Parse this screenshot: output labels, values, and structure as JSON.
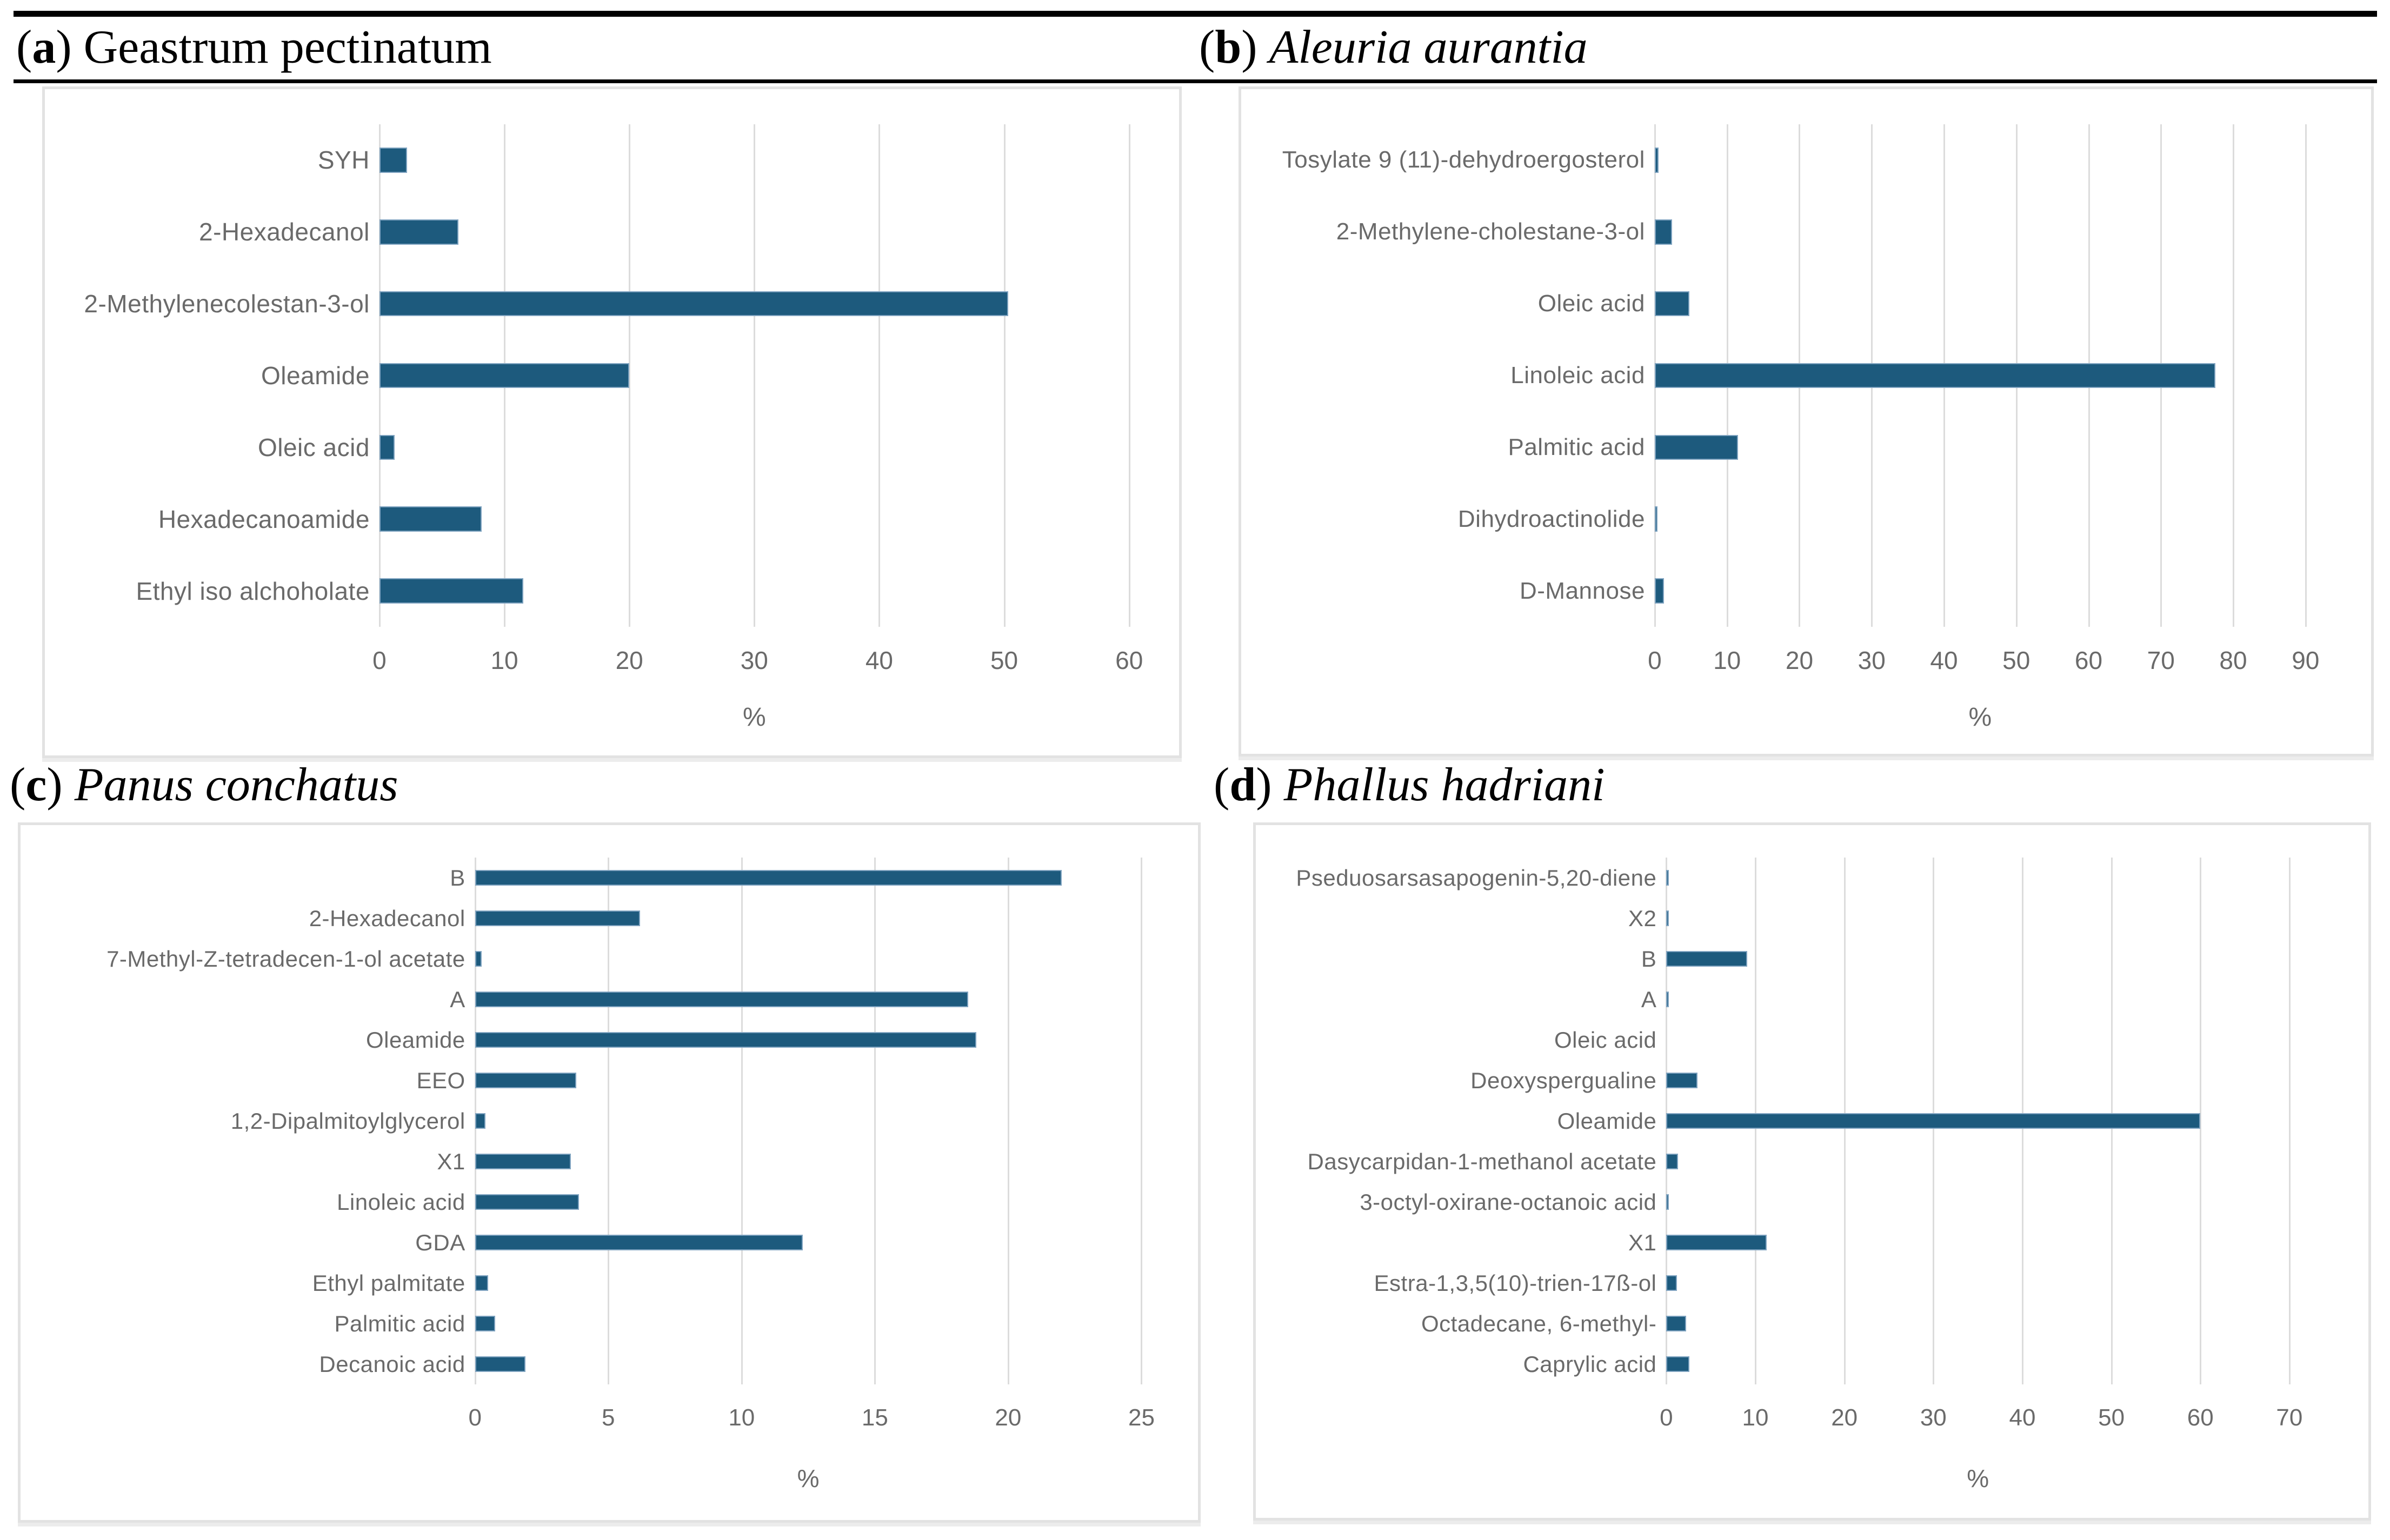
{
  "figure": {
    "panels": [
      {
        "letter": "a",
        "species": "Geastrum pectinatum"
      },
      {
        "letter": "b",
        "species": "Aleuria aurantia"
      },
      {
        "letter": "c",
        "species": "Panus conchatus"
      },
      {
        "letter": "d",
        "species": "Phallus hadriani"
      }
    ]
  },
  "colors": {
    "bar": "#1d5a7d",
    "bar_edge": "#7fa3c0",
    "grid": "#dcdcdc",
    "text": "#6a6a6a",
    "rule": "#000000",
    "box_border": "#e2e2e2"
  },
  "chart_data": [
    {
      "type": "bar",
      "orientation": "horizontal",
      "title": "(a) Geastrum pectinatum",
      "categories": [
        "SYH",
        "2-Hexadecanol",
        "2-Methylenecolestan-3-ol",
        "Oleamide",
        "Oleic acid",
        "Hexadecanoamide",
        "Ethyl iso alchoholate"
      ],
      "values": [
        2.2,
        6.3,
        50.3,
        20.0,
        1.2,
        8.2,
        11.5
      ],
      "xlabel": "%",
      "xlim": [
        0,
        60
      ],
      "xticks": [
        0,
        10,
        20,
        30,
        40,
        50,
        60
      ],
      "grid": true,
      "legend": false
    },
    {
      "type": "bar",
      "orientation": "horizontal",
      "title": "(b) Aleuria aurantia",
      "categories": [
        "Tosylate 9 (11)-dehydroergosterol",
        "2-Methylene-cholestane-3-ol",
        "Oleic acid",
        "Linoleic acid",
        "Palmitic acid",
        "Dihydroactinolide",
        "D-Mannose"
      ],
      "values": [
        0.5,
        2.4,
        4.8,
        77.5,
        11.5,
        0.4,
        1.3
      ],
      "xlabel": "%",
      "xlim": [
        0,
        90
      ],
      "xticks": [
        0,
        10,
        20,
        30,
        40,
        50,
        60,
        70,
        80,
        90
      ],
      "grid": true,
      "legend": false
    },
    {
      "type": "bar",
      "orientation": "horizontal",
      "title": "(c) Panus conchatus",
      "categories": [
        "B",
        "2-Hexadecanol",
        "7-Methyl-Z-tetradecen-1-ol acetate",
        "A",
        "Oleamide",
        "EEO",
        "1,2-Dipalmitoylglycerol",
        "X1",
        "Linoleic acid",
        "GDA",
        "Ethyl palmitate",
        "Palmitic acid",
        "Decanoic acid"
      ],
      "values": [
        22.0,
        6.2,
        0.25,
        18.5,
        18.8,
        3.8,
        0.4,
        3.6,
        3.9,
        12.3,
        0.5,
        0.75,
        1.9
      ],
      "xlabel": "%",
      "xlim": [
        0,
        25
      ],
      "xticks": [
        0,
        5,
        10,
        15,
        20,
        25
      ],
      "grid": true,
      "legend": false
    },
    {
      "type": "bar",
      "orientation": "horizontal",
      "title": "(d) Phallus hadriani",
      "categories": [
        "Pseduosarsasapogenin-5,20-diene",
        "X2",
        "B",
        "A",
        "Oleic acid",
        "Deoxyspergualine",
        "Oleamide",
        "Dasycarpidan-1-methanol acetate",
        "3-octyl-oxirane-octanoic acid",
        "X1",
        "Estra-1,3,5(10)-trien-17ß-ol",
        "Octadecane, 6-methyl-",
        "Caprylic acid"
      ],
      "values": [
        0.3,
        0.3,
        9.1,
        0.3,
        0,
        3.5,
        60.0,
        1.3,
        0.3,
        11.3,
        1.2,
        2.2,
        2.6
      ],
      "xlabel": "%",
      "xlim": [
        0,
        70
      ],
      "xticks": [
        0,
        10,
        20,
        30,
        40,
        50,
        60,
        70
      ],
      "grid": true,
      "legend": false
    }
  ]
}
